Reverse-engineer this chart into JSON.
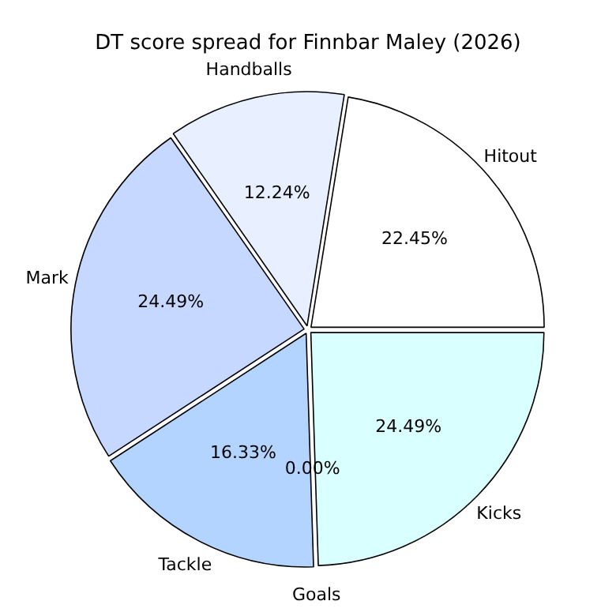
{
  "chart_data": {
    "type": "pie",
    "title": "DT score spread for Finnbar Maley (2026)",
    "categories": [
      "Kicks",
      "Goals",
      "Tackle",
      "Mark",
      "Handballs",
      "Hitout"
    ],
    "values": [
      24.49,
      0,
      16.33,
      24.49,
      12.24,
      22.45
    ],
    "colors": [
      "#d9ffff",
      "#c8e0ff",
      "#b3d4ff",
      "#c6d8ff",
      "#e8efff",
      "#ffffff"
    ],
    "value_labels": [
      "24.49%",
      "0.00%",
      "16.33%",
      "24.49%",
      "12.24%",
      "22.45%"
    ],
    "legend": false
  }
}
